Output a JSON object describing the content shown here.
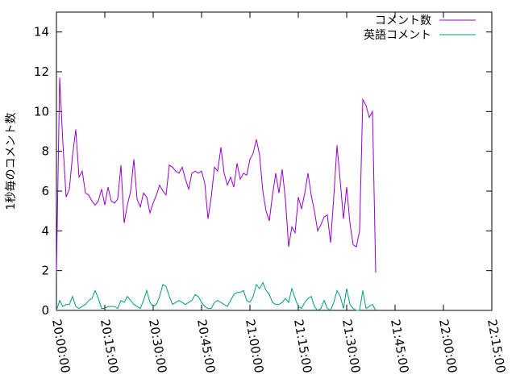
{
  "chart_data": {
    "type": "line",
    "title": "",
    "xlabel": "",
    "ylabel": "1秒毎のコメント数",
    "xlim": [
      "20:00:00",
      "22:15:00"
    ],
    "ylim": [
      0,
      15
    ],
    "xticks": [
      "20:00:00",
      "20:15:00",
      "20:30:00",
      "20:45:00",
      "21:00:00",
      "21:15:00",
      "21:30:00",
      "21:45:00",
      "22:00:00",
      "22:15:00"
    ],
    "yticks": [
      "0",
      "2",
      "4",
      "6",
      "8",
      "10",
      "12",
      "14"
    ],
    "grid": false,
    "legend_position": "top-right",
    "x_step_minutes": 1,
    "x_start": "20:00:00",
    "series": [
      {
        "name": "コメント数",
        "color": "#9400d3",
        "values": [
          1.9,
          11.7,
          8.4,
          5.7,
          6.1,
          7.8,
          9.1,
          6.7,
          7.0,
          5.9,
          5.8,
          5.5,
          5.3,
          5.5,
          6.1,
          5.3,
          6.2,
          5.5,
          5.4,
          5.6,
          7.3,
          4.4,
          5.3,
          6.0,
          7.6,
          5.6,
          5.2,
          5.9,
          5.7,
          4.9,
          5.4,
          5.8,
          6.3,
          6.0,
          5.8,
          7.3,
          7.2,
          7.0,
          6.9,
          7.2,
          6.6,
          6.1,
          6.9,
          7.0,
          6.9,
          7.0,
          6.4,
          4.6,
          5.7,
          7.2,
          7.0,
          8.2,
          6.9,
          6.3,
          6.7,
          6.2,
          7.4,
          6.6,
          6.9,
          6.8,
          7.6,
          7.9,
          8.6,
          7.8,
          6.0,
          5.0,
          4.5,
          5.8,
          6.9,
          5.9,
          7.1,
          5.6,
          3.2,
          4.2,
          3.9,
          5.7,
          5.1,
          5.9,
          6.9,
          5.8,
          5.0,
          4.0,
          4.3,
          4.7,
          4.8,
          3.4,
          5.7,
          8.3,
          6.5,
          4.6,
          6.2,
          4.4,
          3.3,
          3.2,
          4.0,
          10.6,
          10.3,
          9.7,
          10.0,
          1.9
        ]
      },
      {
        "name": "英語コメント",
        "color": "#009e73",
        "values": [
          0.0,
          0.5,
          0.2,
          0.3,
          0.3,
          0.7,
          0.2,
          0.1,
          0.2,
          0.3,
          0.5,
          0.6,
          1.0,
          0.6,
          0.1,
          0.1,
          0.2,
          0.2,
          0.2,
          0.1,
          0.5,
          0.4,
          0.7,
          0.5,
          0.3,
          0.2,
          0.1,
          0.5,
          1.0,
          0.4,
          0.2,
          0.3,
          0.7,
          1.3,
          1.2,
          0.7,
          0.3,
          0.4,
          0.5,
          0.4,
          0.3,
          0.4,
          0.5,
          0.8,
          0.7,
          0.4,
          0.2,
          0.1,
          0.1,
          0.4,
          0.5,
          0.4,
          0.3,
          0.2,
          0.5,
          0.8,
          0.9,
          0.9,
          1.0,
          0.5,
          0.4,
          0.7,
          1.3,
          1.1,
          1.4,
          1.0,
          0.8,
          0.4,
          0.3,
          0.3,
          0.4,
          0.6,
          0.4,
          1.1,
          0.6,
          0.2,
          0.1,
          0.4,
          0.6,
          0.7,
          0.2,
          0.0,
          0.1,
          0.5,
          0.1,
          0.0,
          0.4,
          1.0,
          0.7,
          0.1,
          1.1,
          0.3,
          0.1,
          0.0,
          0.0,
          1.0,
          0.1,
          0.2,
          0.3,
          0.0
        ]
      }
    ]
  }
}
